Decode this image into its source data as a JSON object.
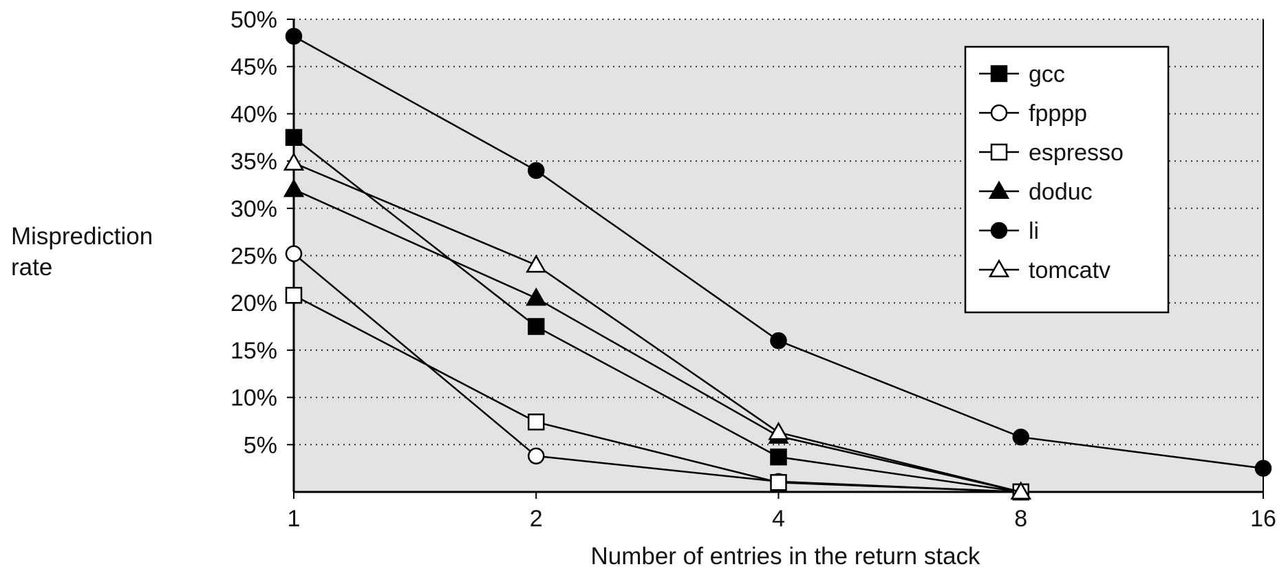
{
  "chart_data": {
    "type": "line",
    "title": "",
    "xlabel": "Number of entries in the return stack",
    "ylabel": [
      "Misprediction",
      "rate"
    ],
    "x": [
      1,
      2,
      4,
      8,
      16
    ],
    "x_scale": "log2",
    "x_tick_labels": [
      "1",
      "2",
      "4",
      "8",
      "16"
    ],
    "ylim": [
      0,
      50
    ],
    "y_tick_labels": [
      "5%",
      "10%",
      "15%",
      "20%",
      "25%",
      "30%",
      "35%",
      "40%",
      "45%",
      "50%"
    ],
    "grid": "horizontal dotted",
    "legend_position": "top-right",
    "series": [
      {
        "name": "gcc",
        "marker": "square-filled",
        "values": [
          37.5,
          17.5,
          3.7,
          0,
          null
        ]
      },
      {
        "name": "fpppp",
        "marker": "circle-open",
        "values": [
          25.2,
          3.8,
          1.1,
          0,
          null
        ]
      },
      {
        "name": "espresso",
        "marker": "square-open",
        "values": [
          20.8,
          7.4,
          1.0,
          0,
          null
        ]
      },
      {
        "name": "doduc",
        "marker": "triangle-filled",
        "values": [
          32.0,
          20.5,
          5.9,
          0,
          null
        ]
      },
      {
        "name": "li",
        "marker": "circle-filled",
        "values": [
          48.2,
          34.0,
          16.0,
          5.8,
          2.5
        ]
      },
      {
        "name": "tomcatv",
        "marker": "triangle-open",
        "values": [
          34.8,
          24.0,
          6.3,
          0,
          null
        ]
      }
    ],
    "colors": {
      "plot_background": "#e3e3e3",
      "line": "#000000",
      "grid": "#333333"
    }
  }
}
